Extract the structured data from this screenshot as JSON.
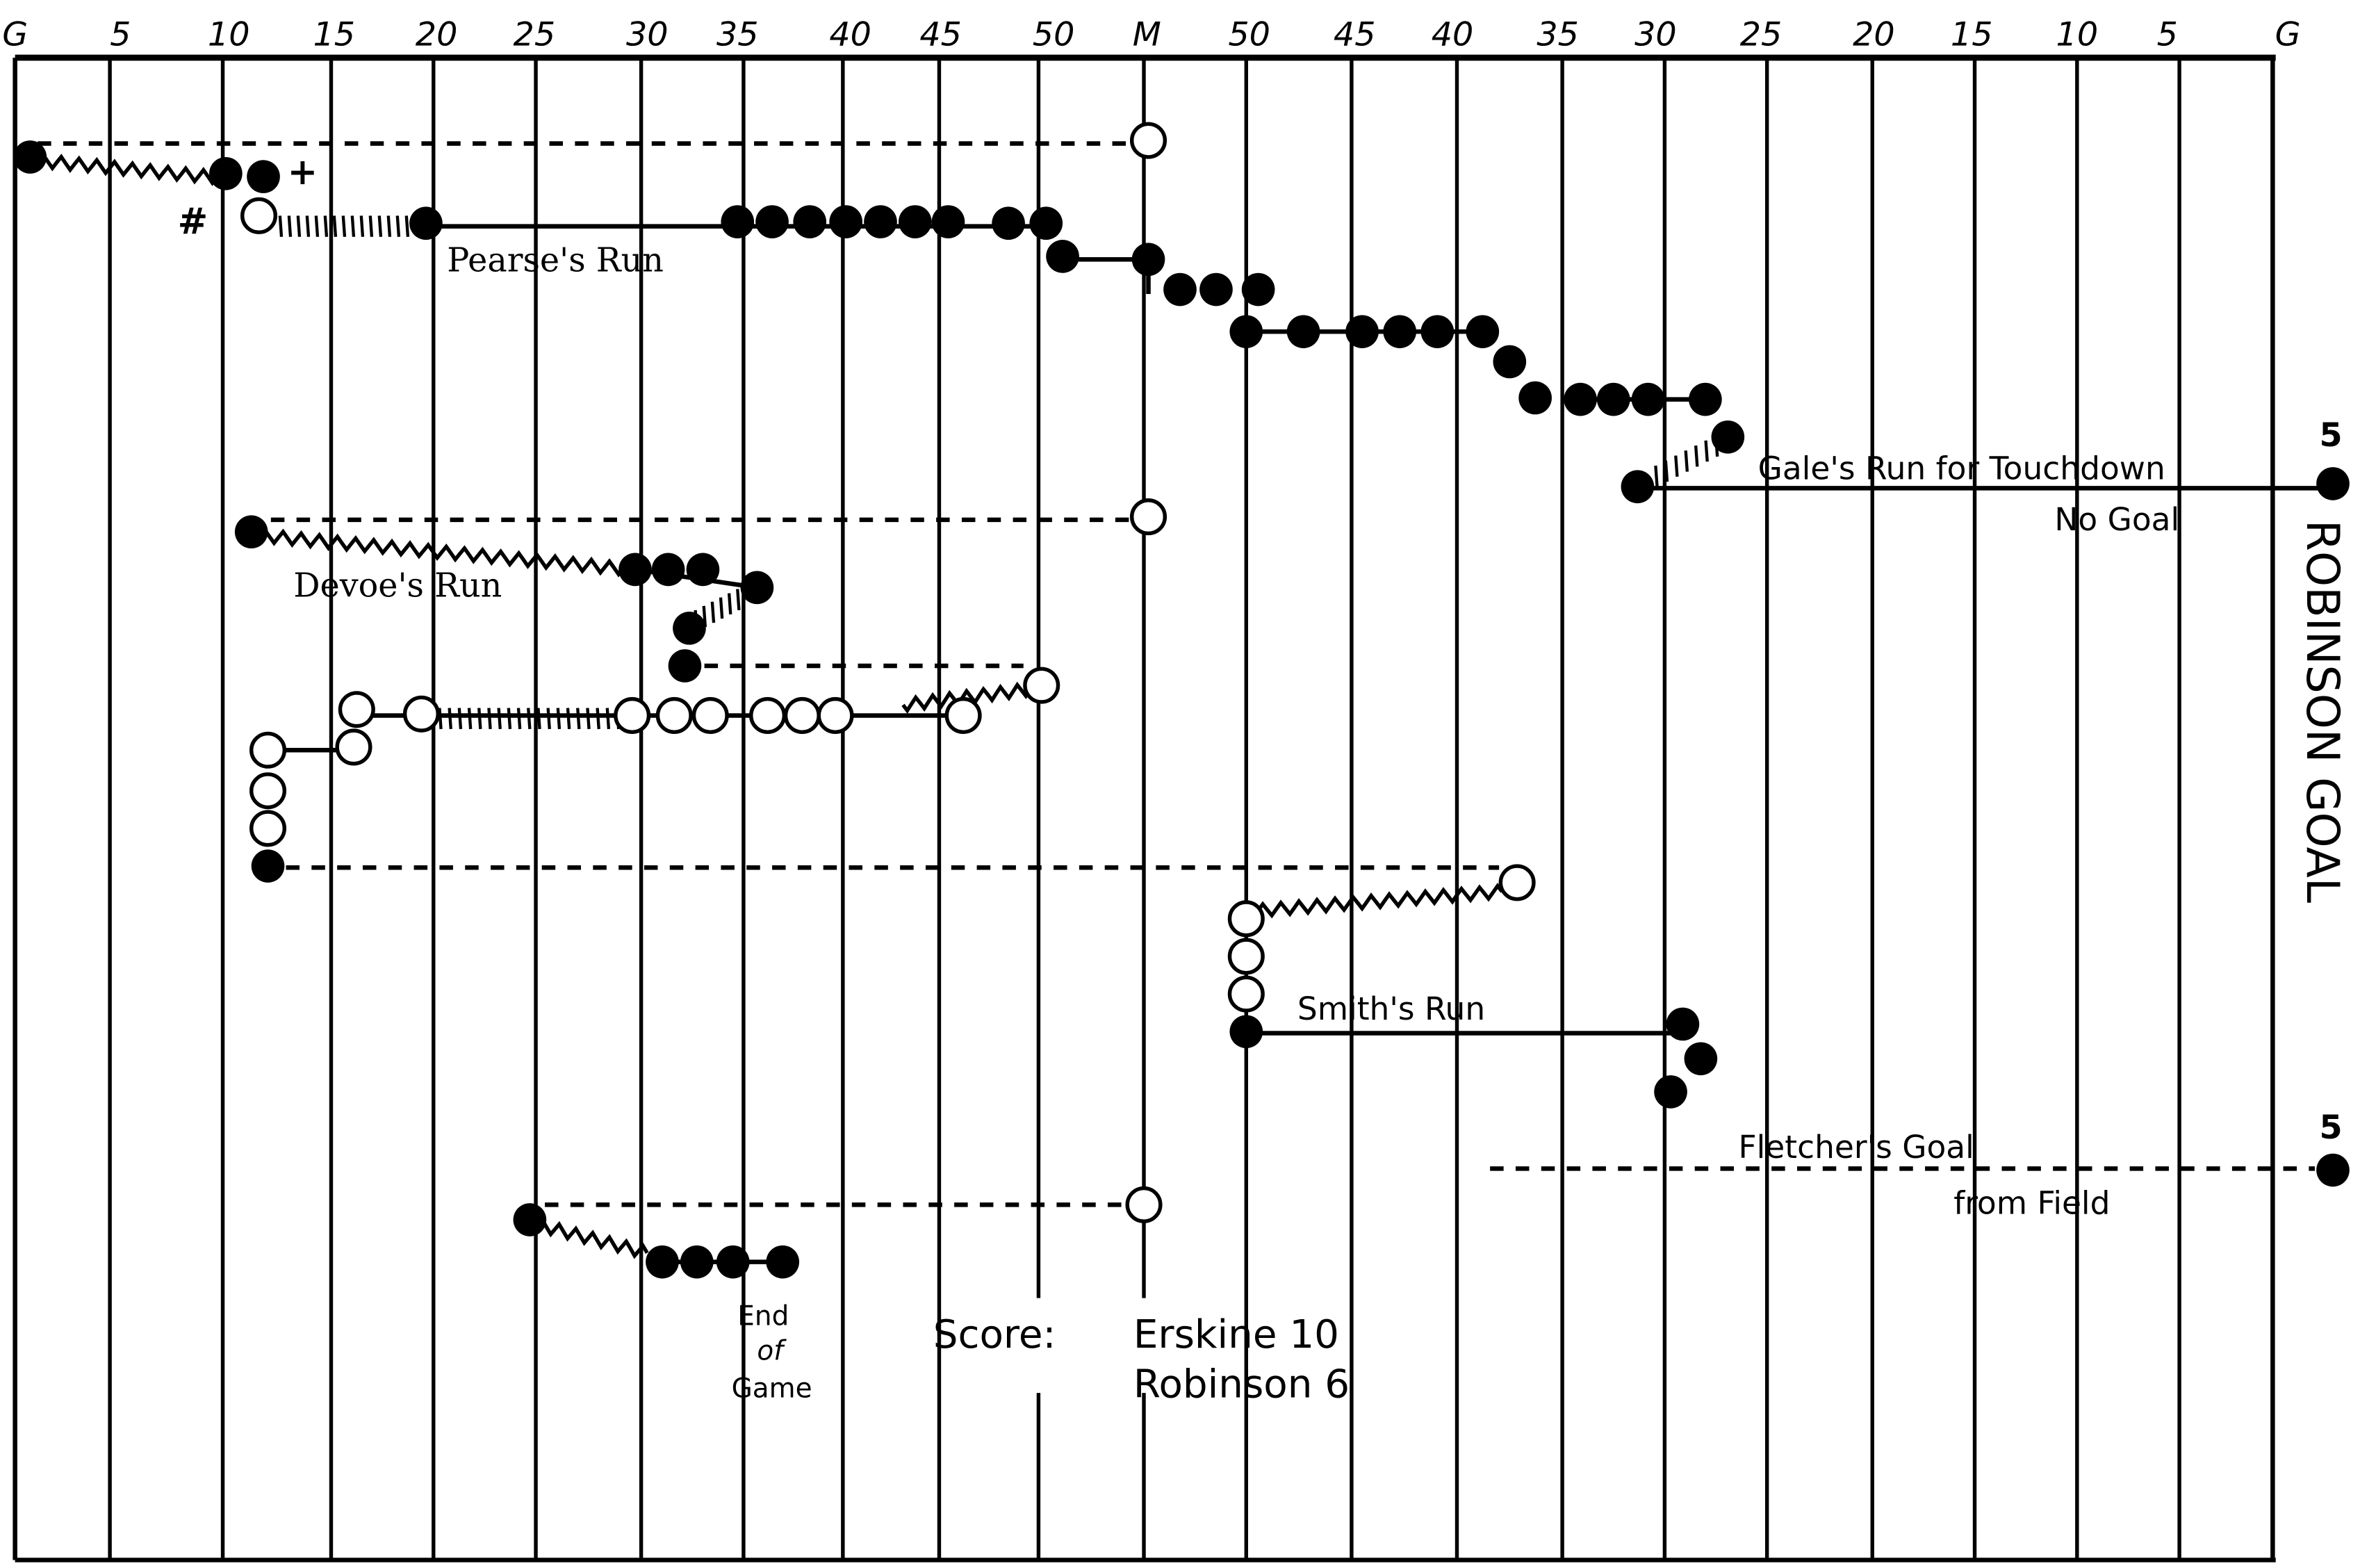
{
  "colors": {
    "ink": "#000000",
    "paper": "#ffffff"
  },
  "field": {
    "yard_labels": [
      "G",
      "5",
      "10",
      "15",
      "20",
      "25",
      "30",
      "35",
      "40",
      "45",
      "50",
      "M",
      "50",
      "45",
      "40",
      "35",
      "30",
      "25",
      "20",
      "15",
      "10",
      "5",
      "G"
    ],
    "goal_label": "ROBINSON GOAL"
  },
  "annotations": {
    "pearse_run": "Pearse's Run",
    "gale_run": "Gale's Run for Touchdown",
    "no_goal": "No Goal",
    "touchdown_points": "5",
    "devoe_run": "Devoe's Run",
    "smith_run": "Smith's Run",
    "fletcher_goal": "Fletcher's Goal",
    "from_field": "from Field",
    "field_goal_points": "5",
    "hash_mark": "#",
    "plus_mark": "+",
    "end_line1": "End",
    "end_line2": "of",
    "end_line3": "Game"
  },
  "score": {
    "label": "Score:",
    "line1": "Erskine 10",
    "line2": "Robinson 6"
  }
}
